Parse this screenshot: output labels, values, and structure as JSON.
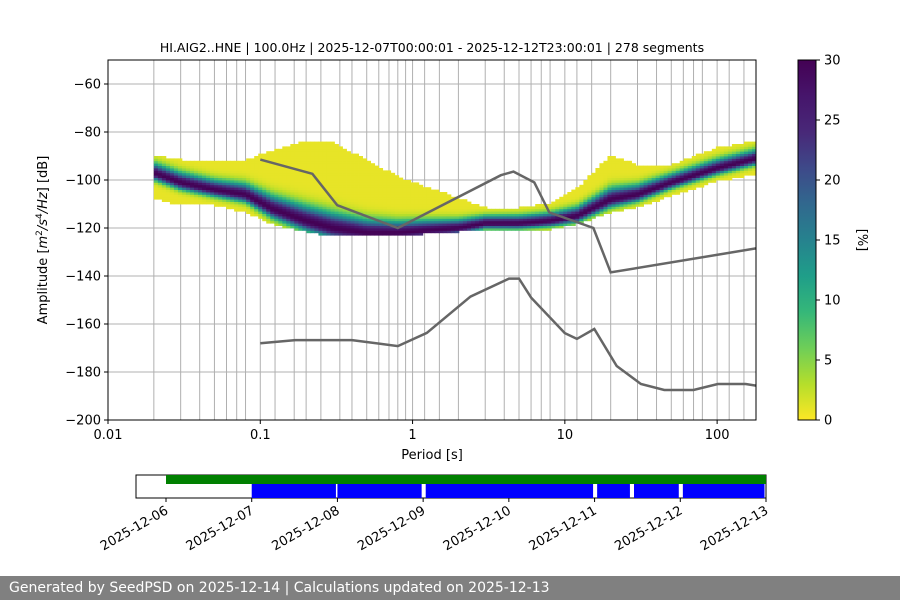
{
  "footer_text": "Generated by SeedPSD on 2025-12-14 | Calculations updated on 2025-12-13",
  "chart_data": {
    "type": "heatmap",
    "title": "HI.AIG2..HNE | 100.0Hz | 2025-12-07T00:00:01 - 2025-12-12T23:00:01 | 278 segments",
    "xlabel": "Period [s]",
    "ylabel_parts": [
      "Amplitude [",
      "m",
      "2",
      "/s",
      "4",
      "/Hz",
      "] [dB]"
    ],
    "x_scale": "log",
    "xlim": [
      0.01,
      180
    ],
    "ylim": [
      -200,
      -50
    ],
    "x_ticks": [
      0.01,
      0.1,
      1,
      10,
      100
    ],
    "x_tick_labels": [
      "0.01",
      "0.1",
      "1",
      "10",
      "100"
    ],
    "y_ticks": [
      -200,
      -180,
      -160,
      -140,
      -120,
      -100,
      -80,
      -60
    ],
    "y_tick_labels": [
      "−200",
      "−180",
      "−160",
      "−140",
      "−120",
      "−100",
      "−80",
      "−60"
    ],
    "grid": true,
    "vertical_grid_periods": [
      0.02,
      0.03,
      0.04,
      0.05,
      0.06,
      0.07,
      0.08,
      0.1,
      0.125,
      0.167,
      0.2,
      0.25,
      0.333,
      0.4,
      0.5,
      0.6,
      0.7,
      0.8,
      0.9,
      1,
      1.2,
      1.5,
      2,
      3,
      4,
      5,
      6,
      7,
      8,
      10,
      12,
      15,
      20,
      30,
      40,
      50,
      60,
      70,
      80,
      100,
      120,
      150
    ],
    "colorbar": {
      "label": "[%]",
      "range": [
        0,
        30
      ],
      "ticks": [
        0,
        5,
        10,
        15,
        20,
        25,
        30
      ],
      "tick_labels": [
        "0",
        "5",
        "10",
        "15",
        "20",
        "25",
        "30"
      ],
      "colormap": "viridis_r"
    },
    "psd_band": [
      {
        "period": 0.02,
        "low": -107,
        "high": -90,
        "mode": -97
      },
      {
        "period": 0.03,
        "low": -110,
        "high": -92,
        "mode": -101
      },
      {
        "period": 0.05,
        "low": -110,
        "high": -93,
        "mode": -104
      },
      {
        "period": 0.08,
        "low": -113,
        "high": -92,
        "mode": -106
      },
      {
        "period": 0.12,
        "low": -118,
        "high": -88,
        "mode": -112
      },
      {
        "period": 0.2,
        "low": -121,
        "high": -84,
        "mode": -117
      },
      {
        "period": 0.3,
        "low": -123,
        "high": -85,
        "mode": -120
      },
      {
        "period": 0.5,
        "low": -123,
        "high": -92,
        "mode": -122
      },
      {
        "period": 0.8,
        "low": -123,
        "high": -99,
        "mode": -122
      },
      {
        "period": 1.2,
        "low": -122,
        "high": -103,
        "mode": -121
      },
      {
        "period": 2,
        "low": -121,
        "high": -108,
        "mode": -120
      },
      {
        "period": 3,
        "low": -120,
        "high": -112,
        "mode": -118
      },
      {
        "period": 5,
        "low": -121,
        "high": -112,
        "mode": -118
      },
      {
        "period": 8,
        "low": -120,
        "high": -110,
        "mode": -117
      },
      {
        "period": 12,
        "low": -118,
        "high": -104,
        "mode": -115
      },
      {
        "period": 20,
        "low": -113,
        "high": -90,
        "mode": -108
      },
      {
        "period": 30,
        "low": -111,
        "high": -94,
        "mode": -106
      },
      {
        "period": 50,
        "low": -106,
        "high": -94,
        "mode": -101
      },
      {
        "period": 100,
        "low": -100,
        "high": -87,
        "mode": -95
      },
      {
        "period": 180,
        "low": -97,
        "high": -84,
        "mode": -91
      }
    ],
    "nhnm": [
      [
        0.1,
        -91.5
      ],
      [
        0.22,
        -97.4
      ],
      [
        0.32,
        -110.5
      ],
      [
        0.8,
        -120
      ],
      [
        3.8,
        -98
      ],
      [
        4.6,
        -96.5
      ],
      [
        6.3,
        -101
      ],
      [
        7.9,
        -113.5
      ],
      [
        15.4,
        -120
      ],
      [
        20,
        -138.5
      ],
      [
        180,
        -128.5
      ]
    ],
    "nlnm": [
      [
        0.1,
        -168
      ],
      [
        0.17,
        -166.7
      ],
      [
        0.4,
        -166.7
      ],
      [
        0.8,
        -169.2
      ],
      [
        1.24,
        -163.7
      ],
      [
        2.4,
        -148.6
      ],
      [
        4.3,
        -141.1
      ],
      [
        5,
        -141.1
      ],
      [
        6,
        -149
      ],
      [
        10,
        -163.8
      ],
      [
        12,
        -166.2
      ],
      [
        15.6,
        -162.1
      ],
      [
        21.9,
        -177.5
      ],
      [
        31.6,
        -185
      ],
      [
        45,
        -187.5
      ],
      [
        70,
        -187.5
      ],
      [
        101,
        -185
      ],
      [
        154,
        -185
      ],
      [
        180,
        -185.7
      ]
    ],
    "timeline": {
      "x_tick_labels": [
        "2025-12-06",
        "2025-12-07",
        "2025-12-08",
        "2025-12-09",
        "2025-12-10",
        "2025-12-11",
        "2025-12-12",
        "2025-12-13"
      ],
      "range_days": [
        -0.35,
        7.0
      ],
      "available": [
        [
          0.0,
          7.0
        ]
      ],
      "used": [
        [
          1.0,
          2.0
        ],
        [
          2.0,
          3.0
        ],
        [
          3.03,
          5.0
        ],
        [
          5.03,
          5.43
        ],
        [
          5.46,
          6.0
        ],
        [
          6.03,
          7.0
        ]
      ],
      "available_color": "#008000",
      "used_color": "#0000ff"
    },
    "colors": {
      "model_line": "#666666",
      "grid": "#b0b0b0"
    }
  }
}
